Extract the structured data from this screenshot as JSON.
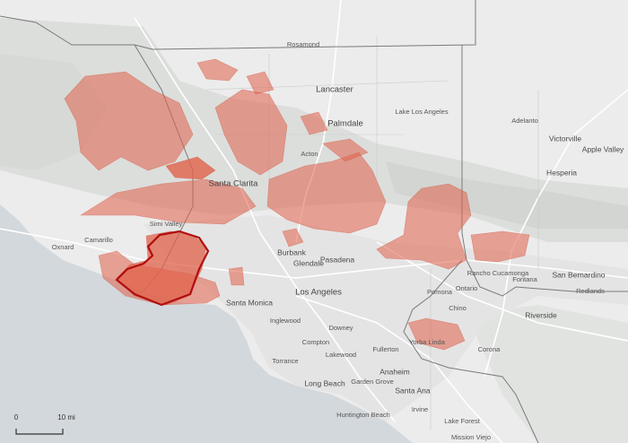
{
  "places": [
    "Lancaster",
    "Palmdale",
    "Rosamond",
    "Lake Los Angeles",
    "Acton",
    "Santa Clarita",
    "Simi Valley",
    "Oxnard",
    "Camarillo",
    "Burbank",
    "Glendale",
    "Pasadena",
    "Los Angeles",
    "Santa Monica",
    "Inglewood",
    "Downey",
    "Compton",
    "Torrance",
    "Lakewood",
    "Long Beach",
    "Anaheim",
    "Fullerton",
    "Garden Grove",
    "Santa Ana",
    "Irvine",
    "Huntington Beach",
    "Lake Forest",
    "Mission Viejo",
    "Yorba Linda",
    "Pomona",
    "Ontario",
    "Chino",
    "Corona",
    "Rancho Cucamonga",
    "Fontana",
    "San Bernardino",
    "Redlands",
    "Riverside",
    "Hesperia",
    "Victorville",
    "Apple Valley",
    "Adelanto"
  ],
  "scale": {
    "start": "0",
    "end": "10 mi"
  }
}
